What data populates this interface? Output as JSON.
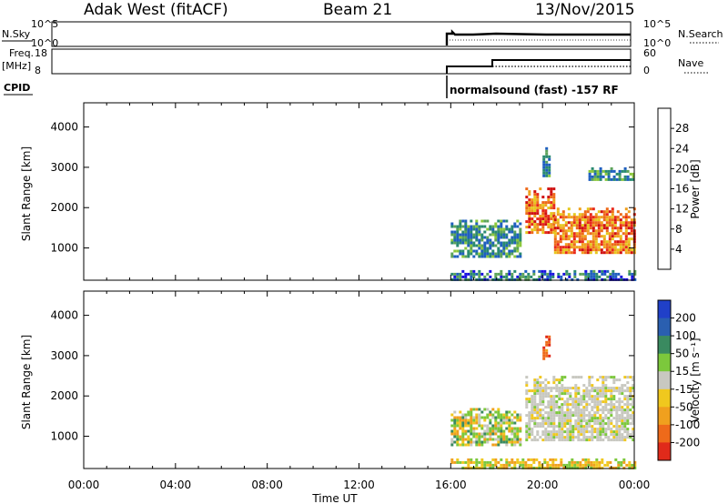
{
  "header": {
    "station": "Adak West (fitACF)",
    "beam": "Beam 21",
    "date": "13/Nov/2015"
  },
  "status_panels": {
    "nsky": {
      "label": "N.Sky",
      "ticks": [
        "10^5",
        "10^0"
      ]
    },
    "nsearch": {
      "label": "N.Search",
      "ticks": [
        "10^5",
        "10^0"
      ]
    },
    "freq": {
      "label_line1": "Freq.",
      "label_line2": "[MHz]",
      "ticks": [
        "18",
        "8"
      ]
    },
    "nave": {
      "label": "Nave",
      "ticks": [
        "60",
        "0"
      ]
    },
    "cpid": {
      "label": "CPID",
      "text": "normalsound (fast) -157 RF"
    }
  },
  "chart_data": [
    {
      "type": "heatmap",
      "panel": "power",
      "xlabel": "",
      "ylabel": "Slant Range [km]",
      "x_range": [
        "00:00",
        "00:00"
      ],
      "ylim": [
        200,
        4600
      ],
      "y_ticks": [
        1000,
        2000,
        3000,
        4000
      ],
      "colorbar": {
        "label": "Power [dB]",
        "ticks": [
          4,
          8,
          12,
          16,
          20,
          24,
          28
        ],
        "colors": [
          "#1a10e0",
          "#1f5fbf",
          "#2a8a70",
          "#5ca35a",
          "#8cc83c",
          "#e6c81e",
          "#f0a01e",
          "#ee6a1a",
          "#e8281a",
          "#d01010"
        ]
      },
      "echo_regions": [
        {
          "start": "16:00",
          "end": "19:00",
          "range_km": [
            800,
            1700
          ],
          "level": "6-12 dB"
        },
        {
          "start": "19:15",
          "end": "20:30",
          "range_km": [
            1400,
            2500
          ],
          "level": "16-28 dB"
        },
        {
          "start": "20:30",
          "end": "00:00",
          "range_km": [
            900,
            2000
          ],
          "level": "20-30 dB"
        },
        {
          "start": "20:00",
          "end": "20:20",
          "range_km": [
            2800,
            3500
          ],
          "level": "12-16 dB"
        },
        {
          "start": "22:00",
          "end": "00:00",
          "range_km": [
            2700,
            3000
          ],
          "level": "12-16 dB"
        },
        {
          "start": "16:00",
          "end": "00:00",
          "range_km": [
            200,
            450
          ],
          "level": "4-12 dB"
        }
      ]
    },
    {
      "type": "heatmap",
      "panel": "velocity",
      "xlabel": "Time UT",
      "ylabel": "Slant Range [km]",
      "x_ticks": [
        "00:00",
        "04:00",
        "08:00",
        "12:00",
        "16:00",
        "20:00",
        "00:00"
      ],
      "ylim": [
        200,
        4600
      ],
      "y_ticks": [
        1000,
        2000,
        3000,
        4000
      ],
      "colorbar": {
        "label": "Velocity [m s⁻¹]",
        "ticks": [
          "200",
          "100",
          "50",
          "15",
          "-15",
          "-50",
          "-100",
          "-200"
        ],
        "colors": [
          "#2040c8",
          "#2a5fb0",
          "#3a8a60",
          "#7cc83c",
          "#c8c8c0",
          "#f0c81e",
          "#f0a01e",
          "#ee6a1a",
          "#e02a1a"
        ]
      },
      "echo_regions": [
        {
          "start": "16:00",
          "end": "19:00",
          "range_km": [
            800,
            1700
          ],
          "level": "15 to 100 m/s"
        },
        {
          "start": "19:15",
          "end": "00:00",
          "range_km": [
            900,
            2500
          ],
          "level": "-15 to 15 m/s (ground scatter)"
        },
        {
          "start": "20:00",
          "end": "20:20",
          "range_km": [
            2900,
            3500
          ],
          "level": "-100 to -200 m/s"
        },
        {
          "start": "16:00",
          "end": "00:00",
          "range_km": [
            200,
            450
          ],
          "level": "-15 to -50 m/s"
        }
      ]
    }
  ]
}
